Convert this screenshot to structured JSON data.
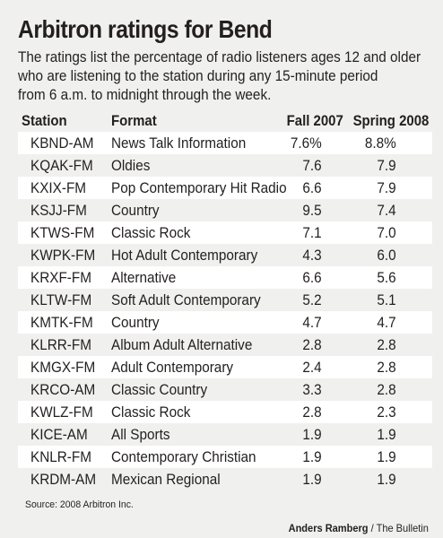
{
  "title": "Arbitron ratings for Bend",
  "subtitle_lines": [
    "The ratings list the percentage of radio listeners ages 12 and older",
    "who are listening to the station during any 15-minute period",
    "from 6 a.m. to midnight through the week."
  ],
  "columns": {
    "station": "Station",
    "format": "Format",
    "fall": "Fall 2007",
    "spring": "Spring 2008"
  },
  "rows": [
    {
      "station": "KBND-AM",
      "format": "News Talk Information",
      "fall": "7.6%",
      "spring": "8.8%"
    },
    {
      "station": "KQAK-FM",
      "format": "Oldies",
      "fall": "7.6",
      "spring": "7.9"
    },
    {
      "station": "KXIX-FM",
      "format": "Pop Contemporary Hit Radio",
      "fall": "6.6",
      "spring": "7.9"
    },
    {
      "station": "KSJJ-FM",
      "format": "Country",
      "fall": "9.5",
      "spring": "7.4"
    },
    {
      "station": "KTWS-FM",
      "format": "Classic Rock",
      "fall": "7.1",
      "spring": "7.0"
    },
    {
      "station": "KWPK-FM",
      "format": "Hot Adult Contemporary",
      "fall": "4.3",
      "spring": "6.0"
    },
    {
      "station": "KRXF-FM",
      "format": "Alternative",
      "fall": "6.6",
      "spring": "5.6"
    },
    {
      "station": "KLTW-FM",
      "format": "Soft Adult Contemporary",
      "fall": "5.2",
      "spring": "5.1"
    },
    {
      "station": "KMTK-FM",
      "format": "Country",
      "fall": "4.7",
      "spring": "4.7"
    },
    {
      "station": "KLRR-FM",
      "format": "Album Adult Alternative",
      "fall": "2.8",
      "spring": "2.8"
    },
    {
      "station": "KMGX-FM",
      "format": "Adult Contemporary",
      "fall": "2.4",
      "spring": "2.8"
    },
    {
      "station": "KRCO-AM",
      "format": "Classic Country",
      "fall": "3.3",
      "spring": "2.8"
    },
    {
      "station": "KWLZ-FM",
      "format": "Classic Rock",
      "fall": "2.8",
      "spring": "2.3"
    },
    {
      "station": "KICE-AM",
      "format": "All Sports",
      "fall": "1.9",
      "spring": "1.9"
    },
    {
      "station": "KNLR-FM",
      "format": "Contemporary Christian",
      "fall": "1.9",
      "spring": "1.9"
    },
    {
      "station": "KRDM-AM",
      "format": "Mexican Regional",
      "fall": "1.9",
      "spring": "1.9"
    }
  ],
  "source": "Source: 2008 Arbitron Inc.",
  "credit": {
    "name": "Anders Ramberg",
    "sep": " / ",
    "org": "The Bulletin"
  },
  "colors": {
    "panel": "#f0f0ef",
    "row_shade": "#ffffff",
    "text": "#231f20"
  },
  "chart_data": {
    "type": "table",
    "title": "Arbitron ratings for Bend",
    "columns": [
      "Station",
      "Format",
      "Fall 2007",
      "Spring 2008"
    ],
    "rows": [
      [
        "KBND-AM",
        "News Talk Information",
        7.6,
        8.8
      ],
      [
        "KQAK-FM",
        "Oldies",
        7.6,
        7.9
      ],
      [
        "KXIX-FM",
        "Pop Contemporary Hit Radio",
        6.6,
        7.9
      ],
      [
        "KSJJ-FM",
        "Country",
        9.5,
        7.4
      ],
      [
        "KTWS-FM",
        "Classic Rock",
        7.1,
        7.0
      ],
      [
        "KWPK-FM",
        "Hot Adult Contemporary",
        4.3,
        6.0
      ],
      [
        "KRXF-FM",
        "Alternative",
        6.6,
        5.6
      ],
      [
        "KLTW-FM",
        "Soft Adult Contemporary",
        5.2,
        5.1
      ],
      [
        "KMTK-FM",
        "Country",
        4.7,
        4.7
      ],
      [
        "KLRR-FM",
        "Album Adult Alternative",
        2.8,
        2.8
      ],
      [
        "KMGX-FM",
        "Adult Contemporary",
        2.4,
        2.8
      ],
      [
        "KRCO-AM",
        "Classic Country",
        3.3,
        2.8
      ],
      [
        "KWLZ-FM",
        "Classic Rock",
        2.8,
        2.3
      ],
      [
        "KICE-AM",
        "All Sports",
        1.9,
        1.9
      ],
      [
        "KNLR-FM",
        "Contemporary Christian",
        1.9,
        1.9
      ],
      [
        "KRDM-AM",
        "Mexican Regional",
        1.9,
        1.9
      ]
    ]
  }
}
